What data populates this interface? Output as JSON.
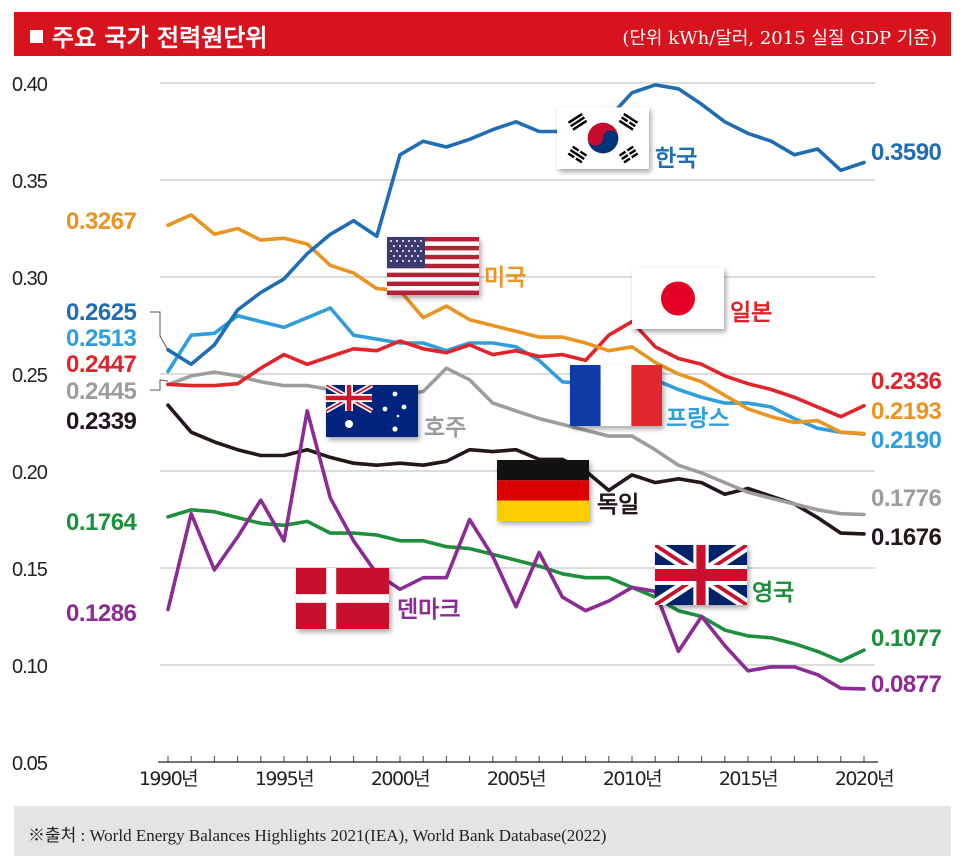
{
  "header": {
    "title": "주요 국가 전력원단위",
    "unit": "(단위 kWh/달러, 2015 실질 GDP 기준)"
  },
  "footer": {
    "source": "※출처 : World Energy Balances Highlights 2021(IEA), World Bank Database(2022)"
  },
  "colors": {
    "header_bg": "#d7131e",
    "korea": "#1f6db5",
    "usa": "#ea9422",
    "japan": "#e2232a",
    "france": "#2e9fdc",
    "australia": "#9d9d9d",
    "germany": "#231815",
    "uk": "#1e8f3c",
    "denmark": "#8b2b93"
  },
  "chart_data": {
    "type": "line",
    "title": "주요 국가 전력원단위",
    "ylabel": "kWh/달러 (2015 실질 GDP 기준)",
    "ylim": [
      0.05,
      0.4
    ],
    "yticks": [
      0.05,
      0.1,
      0.15,
      0.2,
      0.25,
      0.3,
      0.35,
      0.4
    ],
    "ytick_labels": [
      "0.05",
      "0.10",
      "0.15",
      "0.20",
      "0.25",
      "0.30",
      "0.35",
      "0.40"
    ],
    "xlim": [
      1990,
      2020
    ],
    "xticks": [
      1990,
      1995,
      2000,
      2005,
      2010,
      2015,
      2020
    ],
    "xtick_labels": [
      "1990년",
      "1995년",
      "2000년",
      "2005년",
      "2010년",
      "2015년",
      "2020년"
    ],
    "grid": true,
    "x": [
      1990,
      1991,
      1992,
      1993,
      1994,
      1995,
      1996,
      1997,
      1998,
      1999,
      2000,
      2001,
      2002,
      2003,
      2004,
      2005,
      2006,
      2007,
      2008,
      2009,
      2010,
      2011,
      2012,
      2013,
      2014,
      2015,
      2016,
      2017,
      2018,
      2019,
      2020
    ],
    "series": [
      {
        "key": "korea",
        "name": "한국",
        "start_label": "0.2625",
        "end_label": "0.3590",
        "values": [
          0.2625,
          0.255,
          0.265,
          0.283,
          0.292,
          0.299,
          0.312,
          0.322,
          0.329,
          0.321,
          0.363,
          0.37,
          0.367,
          0.371,
          0.376,
          0.38,
          0.375,
          0.375,
          0.381,
          0.382,
          0.395,
          0.399,
          0.397,
          0.389,
          0.38,
          0.374,
          0.37,
          0.363,
          0.366,
          0.355,
          0.359
        ]
      },
      {
        "key": "usa",
        "name": "미국",
        "start_label": "0.3267",
        "end_label": "0.2193",
        "values": [
          0.3267,
          0.332,
          0.322,
          0.325,
          0.319,
          0.32,
          0.317,
          0.306,
          0.302,
          0.294,
          0.293,
          0.279,
          0.285,
          0.278,
          0.275,
          0.272,
          0.269,
          0.269,
          0.266,
          0.262,
          0.264,
          0.256,
          0.25,
          0.246,
          0.239,
          0.232,
          0.228,
          0.225,
          0.226,
          0.22,
          0.2193
        ]
      },
      {
        "key": "japan",
        "name": "일본",
        "start_label": "0.2447",
        "end_label": "0.2336",
        "values": [
          0.2447,
          0.244,
          0.244,
          0.245,
          0.253,
          0.26,
          0.255,
          0.259,
          0.263,
          0.262,
          0.267,
          0.263,
          0.261,
          0.265,
          0.26,
          0.262,
          0.259,
          0.26,
          0.257,
          0.27,
          0.277,
          0.264,
          0.258,
          0.255,
          0.249,
          0.245,
          0.242,
          0.238,
          0.233,
          0.228,
          0.2336
        ]
      },
      {
        "key": "france",
        "name": "프랑스",
        "start_label": "0.2513",
        "end_label": "0.2190",
        "values": [
          0.2513,
          0.27,
          0.271,
          0.28,
          0.277,
          0.274,
          0.279,
          0.284,
          0.27,
          0.268,
          0.266,
          0.266,
          0.262,
          0.266,
          0.266,
          0.264,
          0.257,
          0.246,
          0.245,
          0.246,
          0.249,
          0.247,
          0.242,
          0.238,
          0.235,
          0.235,
          0.233,
          0.227,
          0.222,
          0.22,
          0.219
        ]
      },
      {
        "key": "australia",
        "name": "호주",
        "start_label": "0.2445",
        "end_label": "0.1776",
        "values": [
          0.2445,
          0.249,
          0.251,
          0.249,
          0.246,
          0.244,
          0.244,
          0.242,
          0.238,
          0.237,
          0.239,
          0.241,
          0.253,
          0.247,
          0.235,
          0.231,
          0.227,
          0.224,
          0.221,
          0.218,
          0.218,
          0.211,
          0.203,
          0.199,
          0.194,
          0.189,
          0.186,
          0.183,
          0.18,
          0.178,
          0.1776
        ]
      },
      {
        "key": "germany",
        "name": "독일",
        "start_label": "0.2339",
        "end_label": "0.1676",
        "values": [
          0.2339,
          0.22,
          0.215,
          0.211,
          0.208,
          0.208,
          0.211,
          0.207,
          0.204,
          0.203,
          0.204,
          0.203,
          0.205,
          0.211,
          0.21,
          0.211,
          0.206,
          0.206,
          0.2,
          0.19,
          0.198,
          0.194,
          0.196,
          0.194,
          0.188,
          0.191,
          0.187,
          0.183,
          0.176,
          0.168,
          0.1676
        ]
      },
      {
        "key": "uk",
        "name": "영국",
        "start_label": "0.1764",
        "end_label": "0.1077",
        "values": [
          0.1764,
          0.18,
          0.179,
          0.176,
          0.173,
          0.172,
          0.174,
          0.168,
          0.168,
          0.167,
          0.164,
          0.164,
          0.161,
          0.16,
          0.157,
          0.154,
          0.151,
          0.147,
          0.145,
          0.145,
          0.14,
          0.135,
          0.128,
          0.125,
          0.118,
          0.115,
          0.114,
          0.111,
          0.107,
          0.102,
          0.1077
        ]
      },
      {
        "key": "denmark",
        "name": "덴마크",
        "start_label": "0.1286",
        "end_label": "0.0877",
        "values": [
          0.1286,
          0.178,
          0.149,
          0.166,
          0.185,
          0.164,
          0.231,
          0.186,
          0.164,
          0.147,
          0.139,
          0.145,
          0.145,
          0.175,
          0.156,
          0.13,
          0.158,
          0.135,
          0.128,
          0.133,
          0.14,
          0.138,
          0.107,
          0.125,
          0.11,
          0.097,
          0.099,
          0.099,
          0.095,
          0.088,
          0.0877
        ]
      }
    ]
  }
}
